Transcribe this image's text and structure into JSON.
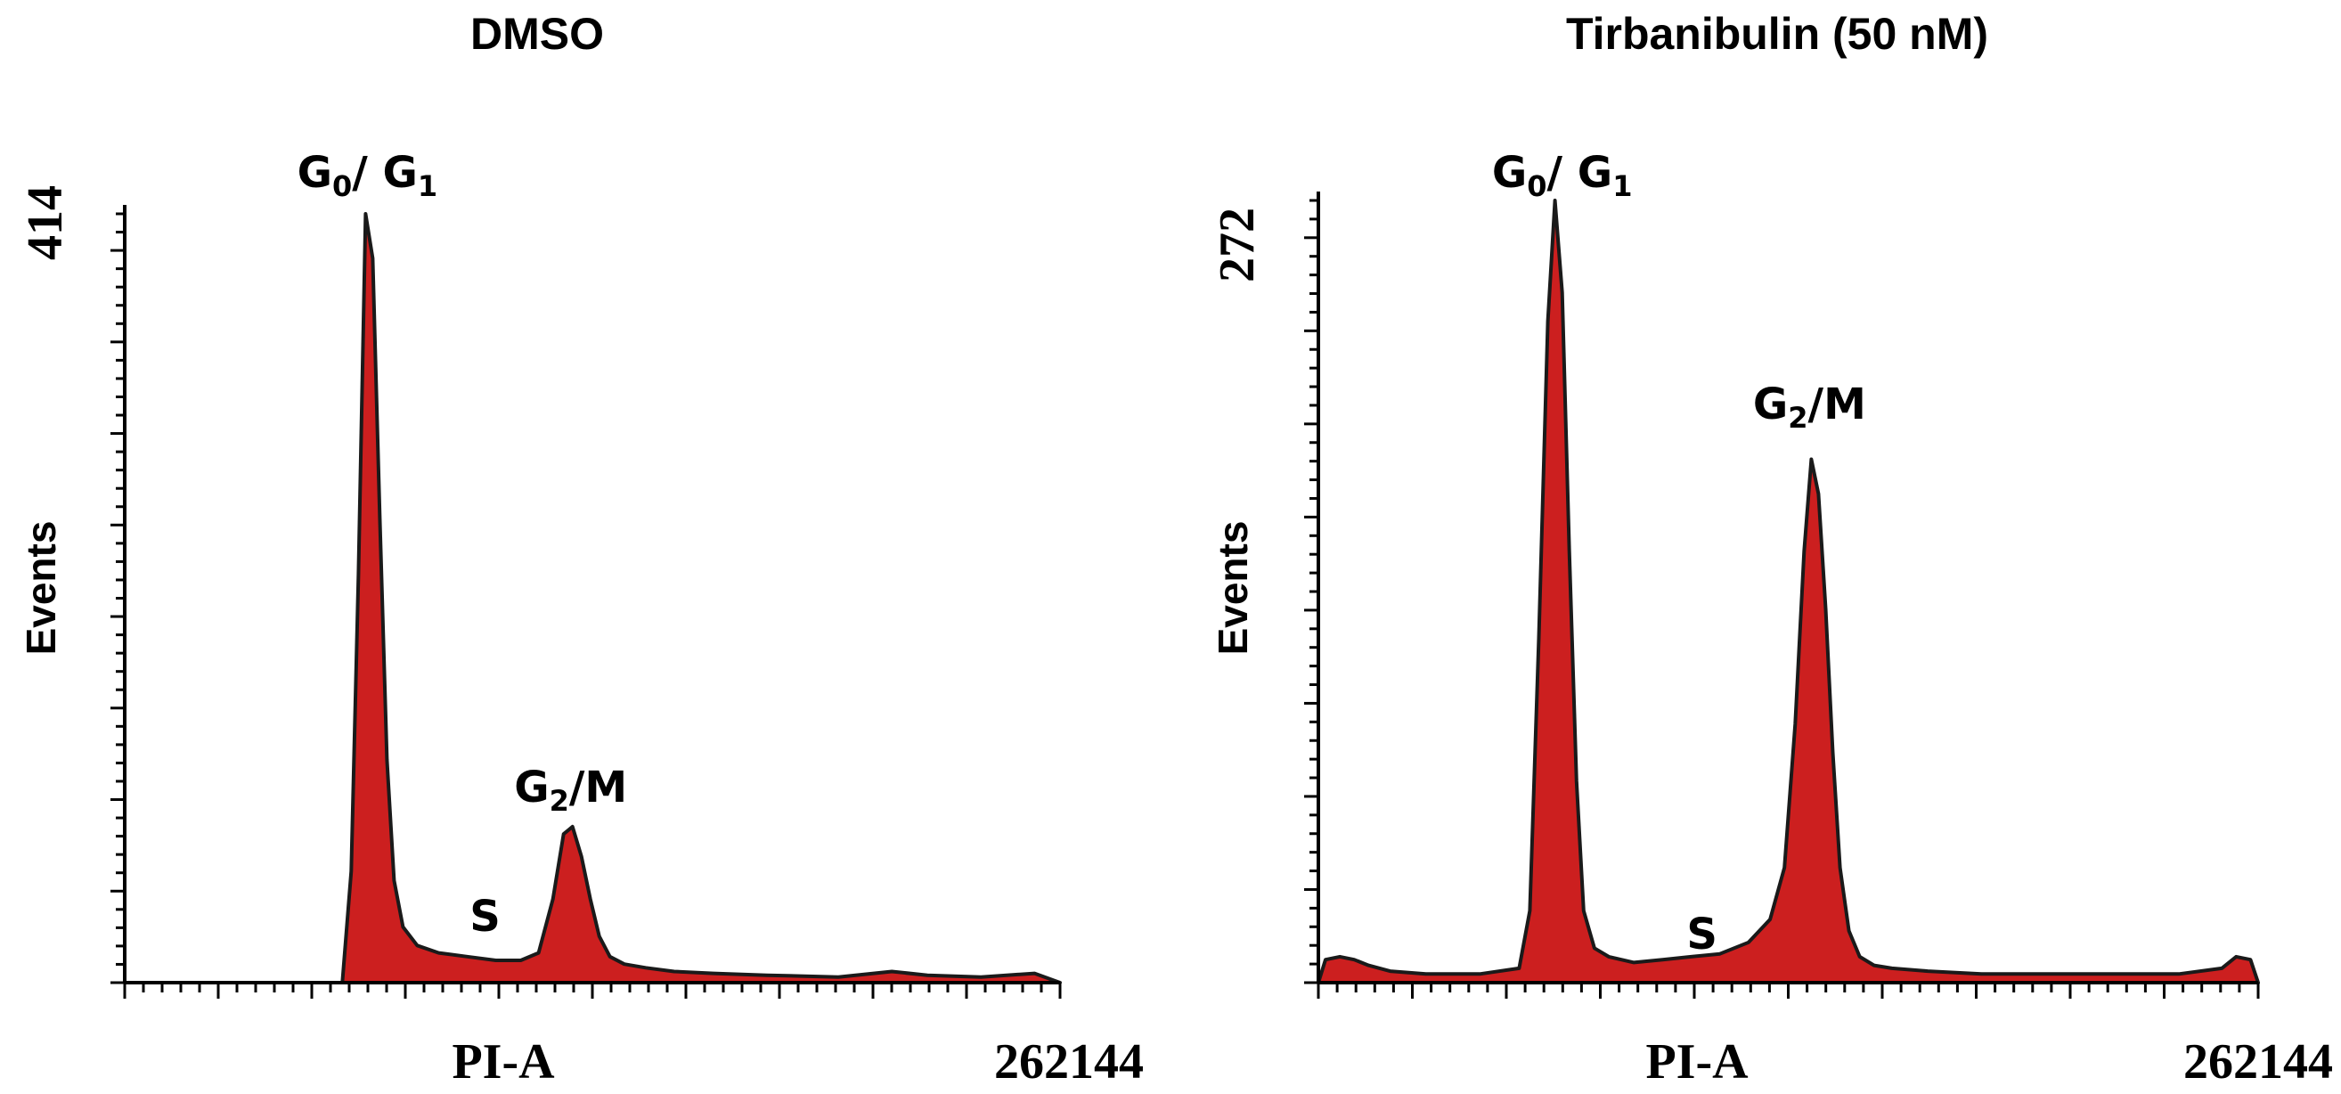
{
  "chart_data": [
    {
      "type": "area",
      "title": "DMSO",
      "xlabel": "PI-A",
      "ylabel": "Events",
      "x_max_label": "262144",
      "y_max_label": "414",
      "xlim": [
        0,
        262144
      ],
      "ylim": [
        0,
        414
      ],
      "fill_color": "#cc1f1f",
      "line_color": "#1a1a1a",
      "series": [
        {
          "x": [
            0,
            40000,
            61000,
            63500,
            65500,
            67500,
            69500,
            71500,
            73500,
            75500,
            78000,
            82000,
            88000,
            96000,
            104000,
            111000,
            116000,
            120000,
            123000,
            125500,
            128000,
            130500,
            133000,
            136000,
            140000,
            146000,
            154000,
            165000,
            180000,
            200000,
            215000,
            225000,
            240000,
            255000,
            262144
          ],
          "y": [
            0,
            0,
            0,
            60,
            220,
            414,
            390,
            250,
            120,
            55,
            30,
            20,
            16,
            14,
            12,
            12,
            16,
            45,
            80,
            84,
            68,
            45,
            25,
            14,
            10,
            8,
            6,
            5,
            4,
            3,
            6,
            4,
            3,
            5,
            0
          ]
        }
      ],
      "annotations": [
        {
          "main": "G",
          "sub": "0",
          "rest": "/ G",
          "sub2": "1",
          "at_x": 68000
        },
        {
          "main": "S",
          "at_x": 101000
        },
        {
          "main": "G",
          "sub": "2",
          "rest": "/M",
          "at_x": 125000
        }
      ]
    },
    {
      "type": "area",
      "title": "Tirbanibulin (50 nM)",
      "xlabel": "PI-A",
      "ylabel": "Events",
      "x_max_label": "262144",
      "y_max_label": "272",
      "xlim": [
        0,
        262144
      ],
      "ylim": [
        0,
        272
      ],
      "fill_color": "#cc1f1f",
      "line_color": "#1a1a1a",
      "series": [
        {
          "x": [
            0,
            2000,
            6000,
            10000,
            14000,
            20000,
            30000,
            45000,
            56000,
            59000,
            61500,
            64000,
            66000,
            68000,
            70000,
            72000,
            74000,
            77000,
            81000,
            88000,
            96000,
            104000,
            112000,
            120000,
            126000,
            130000,
            133000,
            135500,
            137500,
            139500,
            141500,
            143500,
            145500,
            148000,
            151000,
            155000,
            160000,
            170000,
            185000,
            200000,
            220000,
            240000,
            252000,
            256000,
            260000,
            262144
          ],
          "y": [
            0,
            8,
            9,
            8,
            6,
            4,
            3,
            3,
            5,
            25,
            120,
            230,
            272,
            240,
            150,
            70,
            25,
            12,
            9,
            7,
            8,
            9,
            10,
            14,
            22,
            40,
            90,
            150,
            182,
            170,
            130,
            80,
            40,
            18,
            9,
            6,
            5,
            4,
            3,
            3,
            3,
            3,
            5,
            9,
            8,
            0
          ]
        }
      ],
      "annotations": [
        {
          "main": "G",
          "sub": "0",
          "rest": "/ G",
          "sub2": "1",
          "at_x": 68000
        },
        {
          "main": "S",
          "at_x": 107000
        },
        {
          "main": "G",
          "sub": "2",
          "rest": "/M",
          "at_x": 137000
        }
      ]
    }
  ]
}
